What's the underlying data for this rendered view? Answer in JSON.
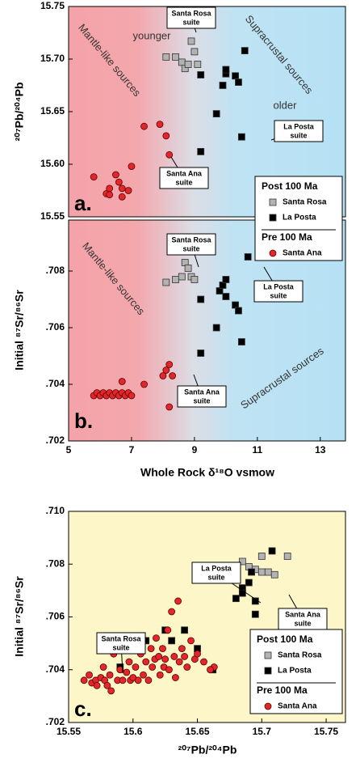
{
  "chart_data": [
    {
      "type": "scatter",
      "panel_label": "a.",
      "y_label": "²⁰⁷Pb/²⁰⁴Pb",
      "xlim": [
        5,
        13.8
      ],
      "ylim": [
        15.55,
        15.75
      ],
      "yticks": [
        15.55,
        {
          "value": 15.6,
          "label": "15.60"
        },
        15.65,
        {
          "value": 15.7,
          "label": "15.70"
        },
        15.75
      ],
      "legend_groups": [
        "Post 100 Ma",
        "Pre 100 Ma"
      ],
      "zone_labels": [
        "Mantle-like sources",
        "Supracrustal sources",
        "younger",
        "older"
      ],
      "annotations": [
        {
          "lines": [
            "Santa Rosa",
            "suite"
          ]
        },
        {
          "lines": [
            "La Posta",
            "suite"
          ]
        },
        {
          "lines": [
            "Santa Ana",
            "suite"
          ]
        }
      ],
      "series": [
        {
          "name": "Santa Rosa",
          "color": "#b3b3b3",
          "marker": "square",
          "x": [
            8.1,
            8.4,
            8.6,
            8.7,
            8.8,
            8.9,
            9.0,
            9.1
          ],
          "values": [
            15.702,
            15.702,
            15.697,
            15.691,
            15.695,
            15.717,
            15.707,
            15.695
          ]
        },
        {
          "name": "La Posta",
          "color": "#000000",
          "marker": "square",
          "x": [
            9.2,
            9.2,
            9.7,
            9.9,
            10.0,
            10.0,
            10.3,
            10.4,
            10.6,
            10.5
          ],
          "values": [
            15.612,
            15.685,
            15.648,
            15.675,
            15.686,
            15.69,
            15.684,
            15.678,
            15.708,
            15.626
          ]
        },
        {
          "name": "Santa Ana",
          "color": "#e3262b",
          "marker": "circle",
          "x": [
            5.8,
            6.2,
            6.3,
            6.3,
            6.5,
            6.6,
            6.7,
            6.7,
            6.9,
            7.0,
            7.4,
            7.9,
            8.1,
            8.2
          ],
          "values": [
            15.588,
            15.572,
            15.577,
            15.571,
            15.59,
            15.583,
            15.577,
            15.569,
            15.575,
            15.598,
            15.636,
            15.638,
            15.627,
            15.609
          ]
        }
      ]
    },
    {
      "type": "scatter",
      "panel_label": "b.",
      "y_label": "Initial ⁸⁷Sr/⁸⁶Sr",
      "x_label": "Whole Rock δ¹⁸O vsmow",
      "xlim": [
        5,
        13.8
      ],
      "ylim": [
        0.702,
        0.7098
      ],
      "xticks": [
        5,
        7,
        9,
        11,
        13
      ],
      "yticks": [
        {
          "value": 0.702,
          "label": ".702"
        },
        {
          "value": 0.704,
          "label": ".704"
        },
        {
          "value": 0.706,
          "label": ".706"
        },
        {
          "value": 0.708,
          "label": ".708"
        }
      ],
      "zone_labels": [
        "Mantle-like sources",
        "Supracrustal sources"
      ],
      "annotations": [
        {
          "lines": [
            "Santa Rosa",
            "suite"
          ]
        },
        {
          "lines": [
            "La Posta",
            "suite"
          ]
        },
        {
          "lines": [
            "Santa Ana",
            "suite"
          ]
        }
      ],
      "series": [
        {
          "name": "Santa Rosa",
          "color": "#b3b3b3",
          "marker": "square",
          "x": [
            8.1,
            8.4,
            8.6,
            8.7,
            8.8,
            8.9,
            9.0
          ],
          "values": [
            0.7076,
            0.7077,
            0.7078,
            0.7083,
            0.7081,
            0.7078,
            0.7077
          ]
        },
        {
          "name": "La Posta",
          "color": "#000000",
          "marker": "square",
          "x": [
            9.2,
            9.2,
            9.7,
            9.8,
            9.9,
            10.0,
            10.0,
            10.3,
            10.4,
            10.5,
            10.7
          ],
          "values": [
            0.7051,
            0.707,
            0.706,
            0.7073,
            0.7075,
            0.7071,
            0.7077,
            0.7068,
            0.7066,
            0.7055,
            0.7085
          ]
        },
        {
          "name": "Santa Ana",
          "color": "#e3262b",
          "marker": "circle",
          "x": [
            5.8,
            5.9,
            6.0,
            6.1,
            6.2,
            6.3,
            6.4,
            6.5,
            6.6,
            6.7,
            6.8,
            6.9,
            7.0,
            6.7,
            7.4,
            8.0,
            8.1,
            8.2,
            8.2,
            8.3
          ],
          "values": [
            0.7036,
            0.7037,
            0.7036,
            0.7037,
            0.7036,
            0.7037,
            0.7036,
            0.7037,
            0.7036,
            0.7037,
            0.7036,
            0.7037,
            0.7036,
            0.7041,
            0.704,
            0.7043,
            0.7045,
            0.7047,
            0.7032,
            0.7043
          ]
        }
      ]
    },
    {
      "type": "scatter",
      "panel_label": "c.",
      "y_label": "Initial ⁸⁷Sr/⁸⁶Sr",
      "x_label": "²⁰⁷Pb/²⁰⁴Pb",
      "xlim": [
        15.55,
        15.765
      ],
      "ylim": [
        0.702,
        0.71
      ],
      "xticks": [
        15.55,
        15.6,
        15.65,
        15.7,
        15.75
      ],
      "yticks": [
        {
          "value": 0.702,
          "label": ".702"
        },
        {
          "value": 0.704,
          "label": ".704"
        },
        {
          "value": 0.706,
          "label": ".706"
        },
        {
          "value": 0.708,
          "label": ".708"
        },
        {
          "value": 0.71,
          "label": ".710"
        }
      ],
      "legend_groups": [
        "Post 100 Ma",
        "Pre 100 Ma"
      ],
      "annotations": [
        {
          "lines": [
            "La Posta",
            "suite"
          ]
        },
        {
          "lines": [
            "Santa Ana",
            "suite"
          ]
        },
        {
          "lines": [
            "Santa Rosa",
            "suite"
          ]
        }
      ],
      "series": [
        {
          "name": "Santa Rosa",
          "color": "#b3b3b3",
          "marker": "square",
          "x": [
            15.685,
            15.69,
            15.695,
            15.7,
            15.7,
            15.705,
            15.71,
            15.72
          ],
          "values": [
            0.7081,
            0.7079,
            0.7078,
            0.7083,
            0.7077,
            0.7077,
            0.7076,
            0.7083
          ]
        },
        {
          "name": "La Posta",
          "color": "#000000",
          "marker": "square",
          "x": [
            15.59,
            15.61,
            15.625,
            15.63,
            15.64,
            15.65,
            15.662,
            15.675,
            15.68,
            15.685,
            15.685,
            15.69,
            15.692,
            15.695,
            15.708,
            15.695
          ],
          "values": [
            0.7041,
            0.7051,
            0.7055,
            0.7051,
            0.7055,
            0.7048,
            0.704,
            0.7074,
            0.7067,
            0.7071,
            0.7069,
            0.7073,
            0.7077,
            0.7061,
            0.7085,
            0.7066
          ]
        },
        {
          "name": "Santa Ana",
          "color": "#e3262b",
          "marker": "circle",
          "x": [
            15.562,
            15.566,
            15.568,
            15.571,
            15.572,
            15.575,
            15.577,
            15.578,
            15.58,
            15.582,
            15.583,
            15.585,
            15.588,
            15.59,
            15.592,
            15.595,
            15.597,
            15.598,
            15.6,
            15.602,
            15.604,
            15.606,
            15.608,
            15.61,
            15.612,
            15.614,
            15.615,
            15.617,
            15.618,
            15.62,
            15.621,
            15.623,
            15.624,
            15.625,
            15.627,
            15.628,
            15.63,
            15.632,
            15.633,
            15.635,
            15.636,
            15.638,
            15.64,
            15.642,
            15.645,
            15.648,
            15.65,
            15.655,
            15.663,
            15.66
          ],
          "values": [
            0.7036,
            0.7038,
            0.7035,
            0.7036,
            0.7034,
            0.7037,
            0.7041,
            0.7036,
            0.7034,
            0.7038,
            0.7032,
            0.7046,
            0.7036,
            0.704,
            0.7036,
            0.7039,
            0.7043,
            0.7036,
            0.7037,
            0.7041,
            0.7036,
            0.7046,
            0.7038,
            0.7043,
            0.7036,
            0.7048,
            0.7041,
            0.7044,
            0.7052,
            0.7045,
            0.7038,
            0.7048,
            0.7041,
            0.7044,
            0.7055,
            0.704,
            0.7062,
            0.7045,
            0.7037,
            0.7066,
            0.7043,
            0.7048,
            0.7045,
            0.7041,
            0.7051,
            0.7044,
            0.7046,
            0.7043,
            0.7041,
            0.704
          ]
        }
      ]
    }
  ]
}
